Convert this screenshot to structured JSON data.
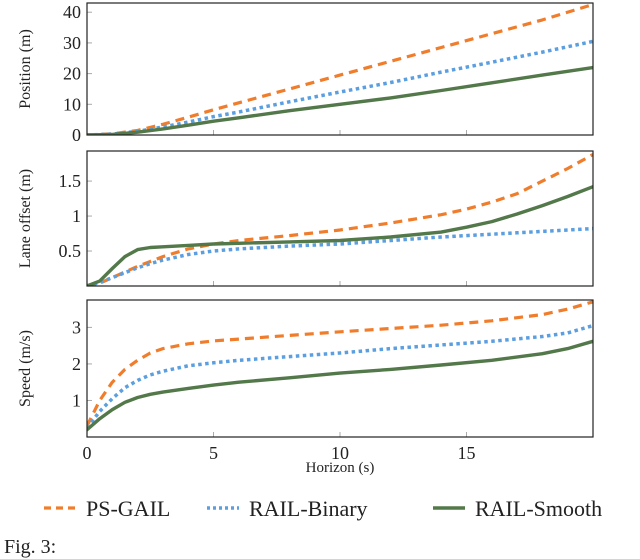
{
  "chart_data": {
    "type": "line",
    "xlabel": "Horizon (s)",
    "xlim": [
      0,
      20
    ],
    "xticks": [
      0,
      5,
      10,
      15
    ],
    "legend": {
      "placement": "bottom",
      "entries": [
        {
          "name": "PS-GAIL",
          "color": "#f07d2c",
          "style": "dashed"
        },
        {
          "name": "RAIL-Binary",
          "color": "#5b9fe0",
          "style": "dotted"
        },
        {
          "name": "RAIL-Smooth",
          "color": "#53784a",
          "style": "solid"
        }
      ]
    },
    "panels": [
      {
        "ylabel": "Position (m)",
        "ylim": [
          0,
          43
        ],
        "yticks": [
          "0",
          "10",
          "20",
          "30",
          "40"
        ],
        "ytick_values": [
          0,
          10,
          20,
          30,
          40
        ],
        "x": [
          0,
          1,
          2,
          3,
          4,
          5,
          6,
          8,
          10,
          12,
          14,
          16,
          18,
          20
        ],
        "series": [
          {
            "name": "PS-GAIL",
            "values": [
              0,
              0.4,
              1.5,
              3.5,
              5.8,
              8.2,
              10.5,
              15,
              19.5,
              24,
              28.5,
              33,
              37.5,
              42.5
            ]
          },
          {
            "name": "RAIL-Binary",
            "values": [
              0,
              0.3,
              1.2,
              2.6,
              4.2,
              6,
              7.5,
              10.8,
              14,
              17.1,
              20.5,
              23.7,
              27,
              30.5
            ]
          },
          {
            "name": "RAIL-Smooth",
            "values": [
              0,
              0.2,
              0.9,
              2,
              3.2,
              4.5,
              5.6,
              7.9,
              10,
              12.1,
              14.5,
              17,
              19.5,
              22
            ]
          }
        ]
      },
      {
        "ylabel": "Lane offset (m)",
        "ylim": [
          0,
          1.93
        ],
        "yticks": [
          "0.5",
          "1",
          "1.5"
        ],
        "ytick_values": [
          0.5,
          1,
          1.5
        ],
        "x": [
          0,
          0.5,
          1,
          1.5,
          2,
          2.5,
          3,
          4,
          5,
          6,
          8,
          10,
          12,
          14,
          15,
          16,
          17,
          18,
          19,
          20
        ],
        "series": [
          {
            "name": "PS-GAIL",
            "values": [
              0,
              0.04,
              0.12,
              0.2,
              0.28,
              0.35,
              0.42,
              0.53,
              0.6,
              0.65,
              0.72,
              0.8,
              0.9,
              1.02,
              1.1,
              1.2,
              1.32,
              1.5,
              1.68,
              1.88
            ]
          },
          {
            "name": "RAIL-Binary",
            "values": [
              0,
              0.05,
              0.12,
              0.19,
              0.26,
              0.32,
              0.37,
              0.45,
              0.5,
              0.53,
              0.57,
              0.6,
              0.65,
              0.7,
              0.72,
              0.74,
              0.76,
              0.78,
              0.8,
              0.82
            ]
          },
          {
            "name": "RAIL-Smooth",
            "values": [
              0,
              0.07,
              0.25,
              0.42,
              0.52,
              0.55,
              0.56,
              0.58,
              0.6,
              0.61,
              0.63,
              0.65,
              0.7,
              0.77,
              0.84,
              0.92,
              1.03,
              1.15,
              1.28,
              1.42
            ]
          }
        ]
      },
      {
        "ylabel": "Speed (m/s)",
        "ylim": [
          0,
          3.75
        ],
        "yticks": [
          "1",
          "2",
          "3"
        ],
        "ytick_values": [
          1,
          2,
          3
        ],
        "x": [
          0,
          0.5,
          1,
          1.5,
          2,
          2.5,
          3,
          4,
          5,
          6,
          8,
          10,
          12,
          14,
          16,
          18,
          19,
          20
        ],
        "series": [
          {
            "name": "PS-GAIL",
            "values": [
              0.3,
              1.0,
              1.5,
              1.85,
              2.1,
              2.3,
              2.42,
              2.55,
              2.63,
              2.68,
              2.78,
              2.88,
              2.97,
              3.06,
              3.18,
              3.35,
              3.5,
              3.7
            ]
          },
          {
            "name": "RAIL-Binary",
            "values": [
              0.25,
              0.7,
              1.05,
              1.35,
              1.55,
              1.7,
              1.8,
              1.95,
              2.03,
              2.1,
              2.2,
              2.3,
              2.42,
              2.52,
              2.62,
              2.75,
              2.85,
              3.05
            ]
          },
          {
            "name": "RAIL-Smooth",
            "values": [
              0.2,
              0.5,
              0.75,
              0.95,
              1.08,
              1.17,
              1.23,
              1.33,
              1.42,
              1.5,
              1.62,
              1.75,
              1.85,
              1.97,
              2.1,
              2.28,
              2.42,
              2.62
            ]
          }
        ]
      }
    ]
  },
  "caption": "Fig. 3:"
}
